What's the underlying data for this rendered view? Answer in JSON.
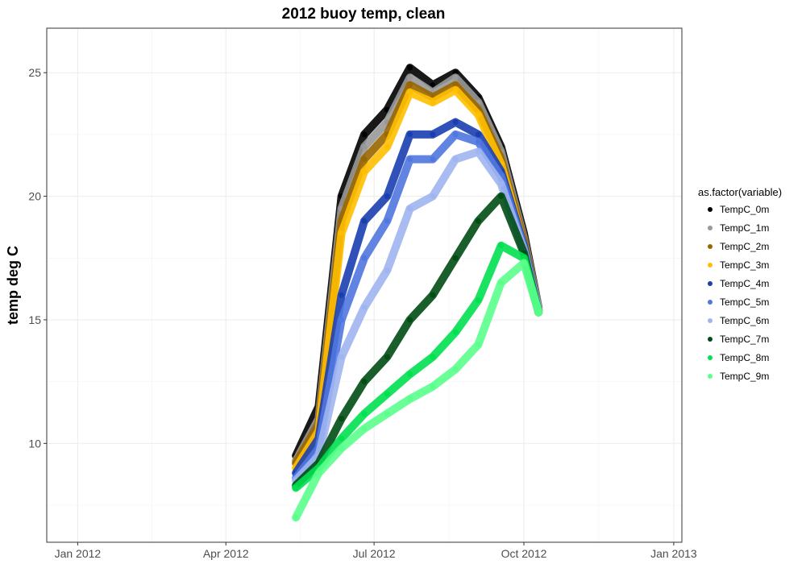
{
  "chart_data": {
    "type": "scatter",
    "title": "2012 buoy temp, clean",
    "xlabel": "",
    "ylabel": "temp deg C",
    "x_ticks": [
      "Jan 2012",
      "Apr 2012",
      "Jul 2012",
      "Oct 2012",
      "Jan 2013"
    ],
    "x_tick_dates": [
      "2012-01-01",
      "2012-04-01",
      "2012-07-01",
      "2012-10-01",
      "2013-01-01"
    ],
    "xlim": [
      "2011-12-13",
      "2013-01-06"
    ],
    "y_ticks": [
      10,
      15,
      20,
      25
    ],
    "ylim": [
      6.0,
      26.8
    ],
    "grid": true,
    "legend": {
      "title": "as.factor(variable)",
      "position": "right"
    },
    "series": [
      {
        "name": "TempC_0m",
        "color": "#000000",
        "x": [
          "2012-05-14",
          "2012-05-28",
          "2012-06-11",
          "2012-06-25",
          "2012-07-09",
          "2012-07-23",
          "2012-08-06",
          "2012-08-20",
          "2012-09-03",
          "2012-09-17",
          "2012-10-01",
          "2012-10-10"
        ],
        "y": [
          9.5,
          11.5,
          20.0,
          22.5,
          23.5,
          25.2,
          24.5,
          25.0,
          24.0,
          22.0,
          18.5,
          15.5
        ]
      },
      {
        "name": "TempC_1m",
        "color": "#999999",
        "x": [
          "2012-05-14",
          "2012-05-28",
          "2012-06-11",
          "2012-06-25",
          "2012-07-09",
          "2012-07-23",
          "2012-08-06",
          "2012-08-20",
          "2012-09-03",
          "2012-09-17",
          "2012-10-01",
          "2012-10-10"
        ],
        "y": [
          9.3,
          11.0,
          19.5,
          22.0,
          23.0,
          24.8,
          24.2,
          24.8,
          23.8,
          21.8,
          18.3,
          15.5
        ]
      },
      {
        "name": "TempC_2m",
        "color": "#996600",
        "x": [
          "2012-05-14",
          "2012-05-28",
          "2012-06-11",
          "2012-06-25",
          "2012-07-09",
          "2012-07-23",
          "2012-08-06",
          "2012-08-20",
          "2012-09-03",
          "2012-09-17",
          "2012-10-01",
          "2012-10-10"
        ],
        "y": [
          9.2,
          10.8,
          19.0,
          21.5,
          22.5,
          24.5,
          24.0,
          24.5,
          23.5,
          21.5,
          18.2,
          15.4
        ]
      },
      {
        "name": "TempC_3m",
        "color": "#FFBF00",
        "x": [
          "2012-05-14",
          "2012-05-28",
          "2012-06-11",
          "2012-06-25",
          "2012-07-09",
          "2012-07-23",
          "2012-08-06",
          "2012-08-20",
          "2012-09-03",
          "2012-09-17",
          "2012-10-01",
          "2012-10-10"
        ],
        "y": [
          9.0,
          10.5,
          18.5,
          21.0,
          22.0,
          24.2,
          23.8,
          24.3,
          23.3,
          21.3,
          18.0,
          15.4
        ]
      },
      {
        "name": "TempC_4m",
        "color": "#1A3EB0",
        "x": [
          "2012-05-14",
          "2012-05-28",
          "2012-06-11",
          "2012-06-25",
          "2012-07-09",
          "2012-07-23",
          "2012-08-06",
          "2012-08-20",
          "2012-09-03",
          "2012-09-17",
          "2012-10-01",
          "2012-10-10"
        ],
        "y": [
          8.8,
          10.2,
          16.0,
          19.0,
          20.0,
          22.5,
          22.5,
          23.0,
          22.5,
          21.0,
          18.0,
          15.4
        ]
      },
      {
        "name": "TempC_5m",
        "color": "#5077E0",
        "x": [
          "2012-05-14",
          "2012-05-28",
          "2012-06-11",
          "2012-06-25",
          "2012-07-09",
          "2012-07-23",
          "2012-08-06",
          "2012-08-20",
          "2012-09-03",
          "2012-09-17",
          "2012-10-01",
          "2012-10-10"
        ],
        "y": [
          8.6,
          9.8,
          15.0,
          17.5,
          19.0,
          21.5,
          21.5,
          22.5,
          22.2,
          20.8,
          17.9,
          15.4
        ]
      },
      {
        "name": "TempC_6m",
        "color": "#A0B5F0",
        "x": [
          "2012-05-14",
          "2012-05-28",
          "2012-06-11",
          "2012-06-25",
          "2012-07-09",
          "2012-07-23",
          "2012-08-06",
          "2012-08-20",
          "2012-09-03",
          "2012-09-17",
          "2012-10-01",
          "2012-10-10"
        ],
        "y": [
          8.5,
          9.5,
          13.5,
          15.5,
          17.0,
          19.5,
          20.0,
          21.5,
          21.8,
          20.5,
          17.8,
          15.4
        ]
      },
      {
        "name": "TempC_7m",
        "color": "#004D14",
        "x": [
          "2012-05-14",
          "2012-05-28",
          "2012-06-11",
          "2012-06-25",
          "2012-07-09",
          "2012-07-23",
          "2012-08-06",
          "2012-08-20",
          "2012-09-03",
          "2012-09-17",
          "2012-10-01",
          "2012-10-10"
        ],
        "y": [
          8.3,
          9.2,
          11.0,
          12.5,
          13.5,
          15.0,
          16.0,
          17.5,
          19.0,
          20.0,
          17.7,
          15.3
        ]
      },
      {
        "name": "TempC_8m",
        "color": "#00E050",
        "x": [
          "2012-05-14",
          "2012-05-28",
          "2012-06-11",
          "2012-06-25",
          "2012-07-09",
          "2012-07-23",
          "2012-08-06",
          "2012-08-20",
          "2012-09-03",
          "2012-09-17",
          "2012-10-01",
          "2012-10-10"
        ],
        "y": [
          8.2,
          9.0,
          10.2,
          11.2,
          12.0,
          12.8,
          13.5,
          14.5,
          15.8,
          18.0,
          17.5,
          15.3
        ]
      },
      {
        "name": "TempC_9m",
        "color": "#5AFF8C",
        "x": [
          "2012-05-14",
          "2012-05-28",
          "2012-06-11",
          "2012-06-25",
          "2012-07-09",
          "2012-07-23",
          "2012-08-06",
          "2012-08-20",
          "2012-09-03",
          "2012-09-17",
          "2012-10-01",
          "2012-10-10"
        ],
        "y": [
          7.0,
          8.8,
          9.8,
          10.6,
          11.2,
          11.8,
          12.3,
          13.0,
          14.0,
          16.5,
          17.3,
          15.3
        ]
      }
    ]
  }
}
